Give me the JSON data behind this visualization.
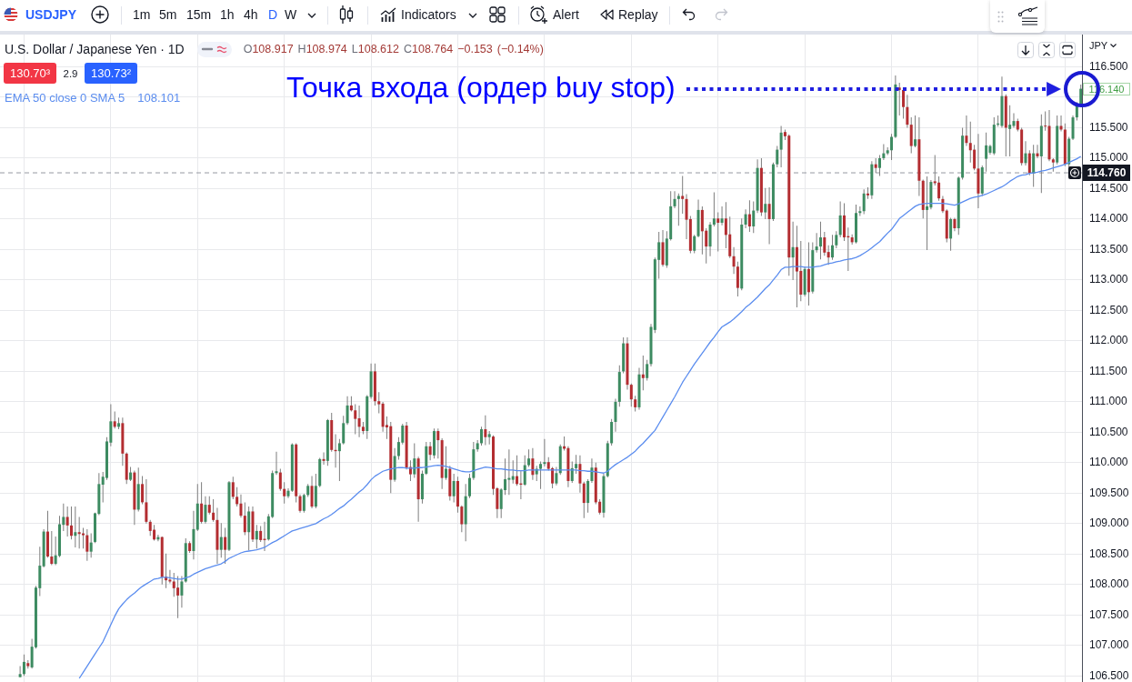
{
  "chart_data": {
    "type": "candlestick",
    "title": "U.S. Dollar / Japanese Yen · 1D",
    "ylabel": "JPY",
    "categories": [
      null,
      null,
      null,
      null,
      null,
      null,
      null,
      null,
      null,
      null,
      null,
      null,
      null,
      null,
      null,
      null,
      null,
      null,
      null,
      null,
      null,
      null,
      null,
      null,
      null,
      null,
      null,
      null,
      null,
      null,
      null,
      null,
      null,
      null,
      null,
      null,
      null,
      null,
      null,
      null,
      null,
      null,
      null,
      null,
      null,
      null,
      null,
      null,
      null,
      null,
      null,
      null,
      null,
      null,
      null,
      null,
      null,
      null,
      null,
      null,
      null,
      null,
      null,
      null,
      null,
      null,
      null,
      null,
      null,
      null,
      null,
      null,
      null,
      null,
      null,
      null,
      null,
      null,
      null,
      null,
      null,
      null,
      null,
      null,
      null,
      null,
      null,
      null,
      null,
      null,
      null,
      null,
      null,
      null,
      null,
      null,
      null,
      null,
      null,
      null,
      null,
      null,
      null,
      null,
      null,
      null,
      null,
      null,
      null,
      null,
      null,
      null,
      null,
      null,
      null,
      null,
      null,
      null,
      null,
      null,
      null,
      null,
      null,
      null,
      null,
      null,
      null,
      null,
      null,
      null,
      null,
      null,
      null,
      null,
      null,
      null,
      null,
      null,
      null,
      null,
      null,
      null,
      null,
      null,
      null,
      null,
      null,
      null,
      null,
      null,
      null,
      null,
      null,
      null,
      null,
      null,
      null,
      null,
      null,
      null,
      null,
      null,
      null,
      null,
      null,
      null,
      null,
      null,
      null,
      null,
      null,
      null,
      null,
      null,
      null,
      null,
      null,
      null,
      null,
      null,
      null,
      null,
      null,
      null,
      null,
      null,
      null,
      null,
      null,
      null,
      null,
      null,
      null,
      null,
      null,
      null,
      null,
      null,
      null,
      null,
      null,
      null,
      null,
      null,
      null,
      null,
      null,
      null,
      null,
      null,
      null,
      null,
      null,
      null,
      null,
      null,
      null,
      null,
      null,
      null,
      null,
      null,
      null,
      null,
      null,
      null,
      null,
      null,
      null,
      null,
      null,
      null,
      null,
      null,
      null,
      null,
      null,
      null,
      null,
      null,
      null,
      null,
      null,
      null,
      null,
      null,
      null,
      null,
      null,
      null,
      null,
      null,
      null,
      null,
      null,
      null,
      null,
      null,
      null,
      null,
      null,
      null,
      null,
      null,
      null,
      null,
      null,
      null,
      null,
      null
    ],
    "ohlc": [
      [
        106.48,
        106.66,
        106.48,
        106.53
      ],
      [
        106.53,
        106.85,
        106.5,
        106.73
      ],
      [
        106.71,
        106.76,
        106.62,
        106.66
      ],
      [
        106.64,
        107.11,
        106.62,
        106.98
      ],
      [
        106.97,
        107.98,
        106.95,
        107.95
      ],
      [
        107.94,
        108.62,
        107.81,
        108.31
      ],
      [
        108.3,
        108.91,
        108.28,
        108.87
      ],
      [
        108.87,
        109.21,
        108.44,
        108.46
      ],
      [
        108.46,
        108.88,
        108.32,
        108.34
      ],
      [
        108.34,
        108.79,
        108.32,
        108.48
      ],
      [
        108.47,
        109.13,
        108.45,
        108.99
      ],
      [
        108.98,
        109.33,
        108.88,
        109.11
      ],
      [
        109.11,
        109.28,
        108.79,
        108.97
      ],
      [
        108.97,
        109.28,
        108.74,
        108.8
      ],
      [
        108.8,
        109.28,
        108.61,
        108.86
      ],
      [
        108.86,
        109.11,
        108.59,
        108.83
      ],
      [
        108.84,
        108.93,
        108.59,
        108.81
      ],
      [
        108.81,
        108.91,
        108.39,
        108.54
      ],
      [
        108.54,
        108.84,
        108.44,
        108.69
      ],
      [
        108.7,
        109.18,
        108.68,
        109.17
      ],
      [
        109.16,
        109.83,
        109.14,
        109.65
      ],
      [
        109.64,
        109.85,
        109.35,
        109.77
      ],
      [
        109.75,
        110.42,
        109.72,
        110.35
      ],
      [
        110.33,
        110.96,
        110.27,
        110.68
      ],
      [
        110.68,
        110.84,
        110.56,
        110.59
      ],
      [
        110.59,
        110.74,
        110.55,
        110.65
      ],
      [
        110.65,
        110.74,
        109.95,
        110.15
      ],
      [
        110.15,
        110.17,
        109.65,
        109.72
      ],
      [
        109.72,
        109.93,
        109.7,
        109.84
      ],
      [
        109.84,
        109.87,
        108.98,
        109.23
      ],
      [
        109.23,
        109.92,
        109.2,
        109.65
      ],
      [
        109.65,
        109.78,
        109.32,
        109.35
      ],
      [
        109.35,
        109.73,
        109.0,
        109.03
      ],
      [
        109.03,
        109.06,
        108.8,
        108.88
      ],
      [
        108.9,
        108.98,
        108.72,
        108.74
      ],
      [
        108.74,
        108.82,
        108.71,
        108.78
      ],
      [
        108.78,
        108.79,
        108.0,
        108.12
      ],
      [
        108.13,
        108.51,
        107.94,
        108.07
      ],
      [
        108.08,
        108.24,
        108.02,
        108.05
      ],
      [
        108.05,
        108.19,
        107.8,
        107.94
      ],
      [
        107.95,
        108.14,
        107.45,
        107.82
      ],
      [
        107.82,
        108.14,
        107.62,
        108.05
      ],
      [
        108.05,
        108.76,
        108.03,
        108.68
      ],
      [
        108.68,
        108.71,
        108.52,
        108.55
      ],
      [
        108.55,
        109.21,
        108.41,
        108.91
      ],
      [
        108.9,
        109.65,
        108.88,
        109.33
      ],
      [
        109.33,
        109.68,
        109.0,
        109.03
      ],
      [
        109.03,
        109.45,
        109.0,
        109.31
      ],
      [
        109.31,
        109.45,
        109.15,
        109.18
      ],
      [
        109.18,
        109.4,
        109.03,
        109.06
      ],
      [
        109.06,
        109.26,
        108.34,
        108.57
      ],
      [
        108.57,
        109.01,
        108.44,
        108.78
      ],
      [
        108.78,
        108.93,
        108.34,
        108.57
      ],
      [
        108.57,
        109.7,
        108.55,
        109.68
      ],
      [
        109.68,
        109.77,
        109.4,
        109.44
      ],
      [
        109.44,
        109.6,
        109.28,
        109.32
      ],
      [
        109.33,
        109.48,
        109.1,
        109.13
      ],
      [
        109.13,
        109.35,
        108.81,
        108.86
      ],
      [
        108.86,
        109.28,
        108.56,
        109.2
      ],
      [
        109.2,
        109.28,
        108.7,
        108.74
      ],
      [
        108.74,
        108.98,
        108.59,
        108.88
      ],
      [
        108.88,
        108.96,
        108.7,
        108.73
      ],
      [
        108.75,
        109.03,
        108.55,
        108.73
      ],
      [
        108.74,
        109.16,
        108.72,
        109.12
      ],
      [
        109.11,
        109.87,
        109.09,
        109.83
      ],
      [
        109.83,
        110.18,
        109.8,
        109.86
      ],
      [
        109.84,
        109.9,
        109.54,
        109.57
      ],
      [
        109.57,
        109.68,
        109.33,
        109.45
      ],
      [
        109.45,
        109.58,
        109.42,
        109.54
      ],
      [
        109.54,
        110.32,
        109.52,
        110.3
      ],
      [
        110.3,
        110.32,
        109.35,
        109.45
      ],
      [
        109.45,
        109.48,
        109.18,
        109.21
      ],
      [
        109.21,
        109.49,
        109.18,
        109.47
      ],
      [
        109.47,
        109.65,
        109.44,
        109.62
      ],
      [
        109.62,
        109.78,
        109.25,
        109.28
      ],
      [
        109.28,
        109.82,
        109.25,
        109.62
      ],
      [
        109.62,
        110.08,
        109.6,
        110.06
      ],
      [
        110.06,
        110.17,
        109.97,
        110.03
      ],
      [
        110.03,
        110.72,
        109.95,
        110.7
      ],
      [
        110.7,
        110.82,
        110.18,
        110.21
      ],
      [
        110.21,
        110.47,
        109.92,
        110.19
      ],
      [
        110.19,
        110.39,
        109.7,
        110.32
      ],
      [
        110.32,
        110.77,
        110.3,
        110.65
      ],
      [
        110.65,
        111.09,
        110.62,
        110.94
      ],
      [
        110.94,
        111.09,
        110.84,
        110.86
      ],
      [
        110.86,
        110.96,
        110.47,
        110.72
      ],
      [
        110.73,
        110.94,
        110.42,
        110.59
      ],
      [
        110.59,
        110.67,
        110.47,
        110.52
      ],
      [
        110.52,
        111.11,
        110.39,
        111.09
      ],
      [
        111.08,
        111.63,
        111.05,
        111.5
      ],
      [
        111.5,
        111.63,
        110.94,
        111.01
      ],
      [
        111.01,
        111.16,
        110.81,
        110.96
      ],
      [
        110.97,
        111.0,
        110.51,
        110.59
      ],
      [
        110.62,
        110.76,
        110.39,
        110.58
      ],
      [
        110.6,
        110.67,
        109.5,
        109.72
      ],
      [
        109.72,
        110.24,
        109.69,
        110.11
      ],
      [
        110.11,
        110.42,
        110.05,
        110.34
      ],
      [
        110.33,
        110.64,
        110.3,
        110.61
      ],
      [
        110.61,
        110.67,
        109.89,
        109.92
      ],
      [
        109.93,
        110.04,
        109.7,
        109.81
      ],
      [
        109.81,
        110.32,
        109.75,
        110.07
      ],
      [
        110.07,
        110.1,
        109.03,
        109.4
      ],
      [
        109.4,
        109.87,
        109.33,
        109.82
      ],
      [
        109.82,
        110.34,
        109.8,
        110.27
      ],
      [
        110.27,
        110.34,
        110.04,
        110.13
      ],
      [
        110.12,
        110.56,
        110.07,
        110.52
      ],
      [
        110.52,
        110.56,
        110.07,
        110.37
      ],
      [
        110.37,
        110.4,
        109.57,
        109.75
      ],
      [
        109.75,
        110.27,
        109.72,
        109.9
      ],
      [
        109.9,
        109.95,
        109.38,
        109.45
      ],
      [
        109.45,
        109.82,
        109.35,
        109.7
      ],
      [
        109.7,
        109.77,
        109.18,
        109.28
      ],
      [
        109.28,
        109.3,
        108.86,
        108.99
      ],
      [
        108.99,
        109.65,
        108.71,
        109.45
      ],
      [
        109.45,
        109.82,
        109.42,
        109.75
      ],
      [
        109.75,
        110.34,
        109.72,
        110.22
      ],
      [
        110.22,
        110.37,
        110.18,
        110.32
      ],
      [
        110.32,
        110.59,
        110.28,
        110.55
      ],
      [
        110.55,
        110.78,
        110.29,
        110.42
      ],
      [
        110.42,
        110.52,
        110.3,
        110.47
      ],
      [
        110.43,
        110.45,
        109.47,
        109.57
      ],
      [
        109.58,
        109.6,
        109.09,
        109.24
      ],
      [
        109.24,
        109.58,
        109.09,
        109.56
      ],
      [
        109.55,
        110.07,
        109.47,
        109.73
      ],
      [
        109.72,
        110.22,
        109.47,
        109.75
      ],
      [
        109.72,
        110.04,
        109.66,
        109.78
      ],
      [
        109.78,
        110.12,
        109.62,
        109.65
      ],
      [
        109.66,
        109.87,
        109.4,
        109.64
      ],
      [
        109.64,
        110.12,
        109.62,
        109.96
      ],
      [
        109.96,
        110.22,
        109.93,
        110.07
      ],
      [
        110.07,
        110.24,
        109.72,
        109.8
      ],
      [
        109.81,
        109.95,
        109.7,
        109.9
      ],
      [
        109.9,
        110.02,
        109.57,
        109.98
      ],
      [
        109.98,
        110.39,
        109.94,
        110.01
      ],
      [
        110.01,
        110.09,
        109.87,
        109.9
      ],
      [
        109.91,
        109.93,
        109.58,
        109.66
      ],
      [
        109.66,
        109.93,
        109.63,
        109.83
      ],
      [
        109.83,
        110.3,
        109.8,
        110.27
      ],
      [
        110.27,
        110.43,
        110.2,
        110.23
      ],
      [
        110.24,
        110.27,
        109.6,
        109.7
      ],
      [
        109.7,
        110.02,
        109.67,
        109.91
      ],
      [
        109.91,
        110.13,
        109.82,
        109.98
      ],
      [
        109.98,
        110.12,
        109.51,
        109.66
      ],
      [
        109.66,
        109.69,
        109.09,
        109.34
      ],
      [
        109.34,
        109.73,
        109.18,
        109.7
      ],
      [
        109.7,
        110.07,
        109.67,
        109.92
      ],
      [
        109.92,
        110.0,
        109.32,
        109.35
      ],
      [
        109.36,
        109.4,
        109.15,
        109.18
      ],
      [
        109.18,
        109.82,
        109.1,
        109.78
      ],
      [
        109.78,
        110.36,
        109.76,
        110.32
      ],
      [
        110.32,
        110.72,
        110.28,
        110.67
      ],
      [
        110.67,
        111.05,
        110.51,
        111.0
      ],
      [
        111.0,
        111.6,
        110.92,
        111.49
      ],
      [
        111.5,
        112.06,
        111.47,
        111.96
      ],
      [
        111.96,
        112.06,
        111.2,
        111.28
      ],
      [
        111.28,
        111.3,
        110.92,
        111.04
      ],
      [
        111.04,
        111.1,
        110.84,
        110.91
      ],
      [
        110.91,
        111.56,
        110.87,
        111.45
      ],
      [
        111.45,
        111.76,
        111.19,
        111.39
      ],
      [
        111.39,
        111.69,
        111.35,
        111.62
      ],
      [
        111.62,
        112.28,
        111.58,
        112.23
      ],
      [
        112.18,
        113.37,
        112.13,
        113.34
      ],
      [
        113.33,
        113.79,
        113.02,
        113.62
      ],
      [
        113.62,
        113.82,
        113.22,
        113.25
      ],
      [
        113.24,
        113.8,
        113.2,
        113.68
      ],
      [
        113.67,
        114.46,
        113.65,
        114.21
      ],
      [
        114.21,
        114.46,
        114.18,
        114.33
      ],
      [
        114.33,
        114.42,
        113.89,
        114.38
      ],
      [
        114.38,
        114.71,
        114.09,
        114.33
      ],
      [
        114.33,
        114.41,
        113.67,
        113.99
      ],
      [
        114.0,
        114.05,
        113.44,
        113.48
      ],
      [
        113.48,
        113.74,
        113.44,
        113.72
      ],
      [
        113.72,
        114.32,
        113.7,
        114.15
      ],
      [
        114.15,
        114.21,
        113.42,
        113.8
      ],
      [
        113.81,
        113.85,
        113.27,
        113.55
      ],
      [
        113.55,
        113.95,
        113.39,
        113.91
      ],
      [
        113.91,
        114.44,
        113.88,
        114.01
      ],
      [
        114.01,
        114.11,
        113.47,
        113.94
      ],
      [
        113.94,
        114.21,
        113.9,
        114.01
      ],
      [
        114.01,
        114.28,
        113.52,
        113.74
      ],
      [
        113.75,
        114.04,
        113.36,
        113.39
      ],
      [
        113.39,
        113.54,
        113.1,
        113.22
      ],
      [
        113.22,
        113.3,
        112.73,
        112.87
      ],
      [
        112.86,
        114.01,
        112.83,
        113.91
      ],
      [
        113.91,
        114.16,
        113.85,
        114.08
      ],
      [
        114.08,
        114.31,
        113.79,
        113.88
      ],
      [
        113.88,
        114.29,
        113.77,
        114.14
      ],
      [
        114.14,
        114.98,
        114.1,
        114.84
      ],
      [
        114.84,
        115.0,
        114.05,
        114.11
      ],
      [
        114.11,
        114.51,
        114.0,
        114.25
      ],
      [
        114.25,
        114.52,
        113.59,
        114.0
      ],
      [
        114.0,
        114.93,
        113.97,
        114.9
      ],
      [
        114.9,
        115.2,
        114.85,
        115.14
      ],
      [
        115.14,
        115.53,
        114.85,
        115.42
      ],
      [
        115.43,
        115.47,
        115.3,
        115.36
      ],
      [
        115.37,
        115.39,
        113.07,
        113.37
      ],
      [
        113.37,
        113.96,
        113.0,
        113.54
      ],
      [
        113.54,
        113.89,
        112.55,
        113.14
      ],
      [
        113.15,
        113.64,
        112.65,
        112.76
      ],
      [
        112.76,
        113.22,
        112.73,
        113.18
      ],
      [
        113.18,
        113.62,
        112.58,
        112.8
      ],
      [
        112.81,
        113.62,
        112.78,
        113.49
      ],
      [
        113.49,
        113.77,
        113.45,
        113.55
      ],
      [
        113.55,
        113.96,
        113.34,
        113.7
      ],
      [
        113.7,
        113.79,
        113.4,
        113.45
      ],
      [
        113.46,
        113.57,
        113.25,
        113.37
      ],
      [
        113.37,
        113.74,
        113.33,
        113.57
      ],
      [
        113.57,
        113.8,
        113.52,
        113.74
      ],
      [
        113.74,
        114.29,
        113.7,
        114.06
      ],
      [
        114.06,
        114.26,
        113.64,
        113.7
      ],
      [
        113.72,
        113.86,
        113.15,
        113.7
      ],
      [
        113.7,
        113.75,
        113.58,
        113.62
      ],
      [
        113.62,
        114.24,
        113.6,
        114.1
      ],
      [
        114.1,
        114.21,
        114.05,
        114.13
      ],
      [
        114.13,
        114.49,
        114.08,
        114.42
      ],
      [
        114.42,
        114.52,
        114.33,
        114.39
      ],
      [
        114.39,
        114.95,
        114.33,
        114.9
      ],
      [
        114.9,
        115.0,
        114.76,
        114.84
      ],
      [
        114.84,
        115.05,
        114.71,
        115.0
      ],
      [
        115.0,
        115.23,
        114.97,
        115.08
      ],
      [
        115.08,
        115.18,
        115.05,
        115.13
      ],
      [
        115.13,
        115.4,
        114.97,
        115.35
      ],
      [
        115.35,
        116.36,
        115.33,
        116.21
      ],
      [
        116.16,
        116.24,
        115.7,
        116.12
      ],
      [
        116.12,
        116.16,
        115.65,
        115.84
      ],
      [
        115.84,
        116.04,
        115.5,
        115.55
      ],
      [
        115.55,
        115.67,
        115.08,
        115.2
      ],
      [
        115.2,
        115.7,
        115.18,
        115.31
      ],
      [
        115.31,
        115.67,
        114.38,
        114.63
      ],
      [
        114.63,
        114.65,
        114.01,
        114.15
      ],
      [
        114.15,
        114.7,
        113.49,
        114.21
      ],
      [
        114.19,
        114.64,
        114.16,
        114.61
      ],
      [
        114.62,
        115.05,
        114.55,
        114.59
      ],
      [
        114.6,
        114.7,
        114.3,
        114.34
      ],
      [
        114.33,
        114.38,
        114.1,
        114.13
      ],
      [
        114.14,
        114.16,
        113.62,
        113.68
      ],
      [
        113.68,
        114.02,
        113.48,
        114.0
      ],
      [
        114.0,
        114.02,
        113.8,
        113.85
      ],
      [
        113.85,
        114.7,
        113.74,
        114.68
      ],
      [
        114.68,
        115.5,
        114.65,
        115.37
      ],
      [
        115.37,
        115.7,
        115.2,
        115.25
      ],
      [
        115.25,
        115.6,
        114.93,
        115.13
      ],
      [
        115.14,
        115.22,
        114.8,
        114.83
      ],
      [
        114.83,
        115.4,
        114.18,
        114.42
      ],
      [
        114.42,
        114.88,
        114.38,
        114.85
      ],
      [
        114.99,
        115.42,
        114.78,
        115.21
      ],
      [
        115.09,
        115.22,
        115.06,
        115.2
      ],
      [
        115.08,
        115.67,
        115.05,
        115.55
      ],
      [
        115.55,
        115.7,
        115.52,
        115.57
      ],
      [
        115.53,
        116.34,
        115.5,
        116.02
      ],
      [
        116.02,
        116.05,
        115.03,
        115.5
      ],
      [
        115.48,
        115.87,
        115.03,
        115.55
      ],
      [
        115.53,
        115.74,
        115.5,
        115.61
      ],
      [
        115.61,
        115.65,
        115.44,
        115.47
      ],
      [
        115.47,
        115.5,
        114.88,
        114.92
      ],
      [
        114.92,
        115.28,
        114.88,
        115.08
      ],
      [
        115.08,
        115.13,
        114.72,
        114.75
      ],
      [
        114.75,
        115.22,
        114.53,
        115.08
      ],
      [
        115.08,
        115.22,
        115.0,
        115.03
      ],
      [
        115.03,
        115.72,
        114.43,
        115.53
      ],
      [
        115.53,
        115.77,
        115.45,
        115.52
      ],
      [
        115.53,
        115.79,
        114.95,
        114.98
      ],
      [
        114.98,
        115.0,
        114.78,
        114.93
      ],
      [
        114.93,
        115.7,
        114.9,
        115.53
      ],
      [
        115.53,
        115.7,
        115.44,
        115.47
      ],
      [
        115.47,
        115.57,
        114.87,
        114.9
      ],
      [
        114.9,
        115.35,
        114.85,
        115.32
      ],
      [
        115.32,
        115.7,
        115.3,
        115.67
      ],
      [
        115.67,
        115.92,
        115.62,
        115.87
      ],
      [
        115.87,
        116.21,
        115.84,
        116.14
      ]
    ],
    "series": [
      {
        "name": "EMA 50 close 0 SMA 5",
        "type": "line",
        "color": "#5b8def",
        "values": [
          null,
          null,
          null,
          null,
          null,
          null,
          null,
          null,
          null,
          null,
          null,
          null,
          null,
          null,
          null,
          106.46,
          106.56,
          106.66,
          106.76,
          106.86,
          106.96,
          107.06,
          107.2,
          107.34,
          107.48,
          107.6,
          107.68,
          107.75,
          107.81,
          107.86,
          107.92,
          107.97,
          108.01,
          108.05,
          108.09,
          108.1,
          108.12,
          108.12,
          108.11,
          108.1,
          108.09,
          108.09,
          108.11,
          108.13,
          108.17,
          108.2,
          108.23,
          108.26,
          108.28,
          108.3,
          108.32,
          108.34,
          108.38,
          108.43,
          108.46,
          108.49,
          108.52,
          108.54,
          108.55,
          108.56,
          108.57,
          108.59,
          108.61,
          108.65,
          108.69,
          108.72,
          108.76,
          108.8,
          108.84,
          108.88,
          108.9,
          108.92,
          108.94,
          108.96,
          108.98,
          109.0,
          109.04,
          109.08,
          109.11,
          109.15,
          109.2,
          109.25,
          109.29,
          109.35,
          109.4,
          109.46,
          109.52,
          109.57,
          109.64,
          109.72,
          109.78,
          109.82,
          109.86,
          109.88,
          109.9,
          109.91,
          109.92,
          109.92,
          109.91,
          109.91,
          109.91,
          109.92,
          109.92,
          109.93,
          109.94,
          109.95,
          109.96,
          109.95,
          109.94,
          109.92,
          109.9,
          109.88,
          109.86,
          109.85,
          109.85,
          109.87,
          109.89,
          109.91,
          109.93,
          109.92,
          109.91,
          109.9,
          109.9,
          109.89,
          109.88,
          109.88,
          109.87,
          109.87,
          109.87,
          109.88,
          109.88,
          109.88,
          109.88,
          109.88,
          109.88,
          109.88,
          109.88,
          109.88,
          109.88,
          109.88,
          109.88,
          109.88,
          109.87,
          109.87,
          109.86,
          109.86,
          109.85,
          109.84,
          109.83,
          109.86,
          109.92,
          109.97,
          110.01,
          110.05,
          110.09,
          110.14,
          110.19,
          110.26,
          110.32,
          110.39,
          110.46,
          110.53,
          110.64,
          110.75,
          110.86,
          110.97,
          111.08,
          111.2,
          111.32,
          111.42,
          111.52,
          111.62,
          111.71,
          111.8,
          111.89,
          111.98,
          112.06,
          112.15,
          112.23,
          112.27,
          112.31,
          112.36,
          112.42,
          112.48,
          112.55,
          112.6,
          112.66,
          112.72,
          112.79,
          112.86,
          112.92,
          113.0,
          113.08,
          113.17,
          113.21,
          113.21,
          113.22,
          113.22,
          113.22,
          113.21,
          113.21,
          113.21,
          113.22,
          113.23,
          113.25,
          113.27,
          113.28,
          113.3,
          113.31,
          113.33,
          113.34,
          113.35,
          113.37,
          113.4,
          113.44,
          113.48,
          113.53,
          113.58,
          113.63,
          113.7,
          113.77,
          113.83,
          113.92,
          114.01,
          114.06,
          114.11,
          114.16,
          114.21,
          114.24,
          114.25,
          114.26,
          114.26,
          114.26,
          114.26,
          114.26,
          114.25,
          114.24,
          114.23,
          114.25,
          114.28,
          114.31,
          114.34,
          114.36,
          114.37,
          114.39,
          114.41,
          114.44,
          114.47,
          114.5,
          114.53,
          114.57,
          114.62,
          114.66,
          114.7,
          114.72,
          114.73,
          114.75,
          114.76,
          114.77,
          114.79,
          114.8,
          114.82,
          114.84,
          114.86,
          114.88,
          114.9,
          114.93,
          114.96,
          114.99,
          115.03
        ]
      }
    ],
    "ylim": [
      106.4,
      117.03
    ],
    "yticks": [
      {
        "value": 106.5,
        "label": "106.500"
      },
      {
        "value": 107,
        "label": "107.000"
      },
      {
        "value": 107.5,
        "label": "107.500"
      },
      {
        "value": 108,
        "label": "108.000"
      },
      {
        "value": 108.5,
        "label": "108.500"
      },
      {
        "value": 109,
        "label": "109.000"
      },
      {
        "value": 109.5,
        "label": "109.500"
      },
      {
        "value": 110,
        "label": "110.000"
      },
      {
        "value": 110.5,
        "label": "110.500"
      },
      {
        "value": 111,
        "label": "111.000"
      },
      {
        "value": 111.5,
        "label": "111.500"
      },
      {
        "value": 112,
        "label": "112.000"
      },
      {
        "value": 112.5,
        "label": "112.500"
      },
      {
        "value": 113,
        "label": "113.000"
      },
      {
        "value": 113.5,
        "label": "113.500"
      },
      {
        "value": 114,
        "label": "114.000"
      },
      {
        "value": 114.5,
        "label": "114.500"
      },
      {
        "value": 115,
        "label": "115.000"
      },
      {
        "value": 115.5,
        "label": "115.500"
      },
      {
        "value": 116,
        "label": null
      },
      {
        "value": 116.5,
        "label": "116.500"
      }
    ],
    "grid": true,
    "legend": "top left",
    "ref_lines": [
      {
        "axis": "y",
        "value": 114.76,
        "label": "114.760",
        "color": "#9598a1",
        "line_style": "dashed"
      }
    ],
    "annotations": [
      "USDJPY",
      "1m",
      "5m",
      "15m",
      "1h",
      "4h",
      "D",
      "W",
      "Indicators",
      "Alert",
      "Replay",
      "O108.917 H108.974 L108.612 C108.764 −0.153 (−0.14%)",
      "130.70³",
      "2.9",
      "130.73²",
      "108.101",
      "Точка входа (ордер buy stop)",
      "116.140"
    ]
  }
}
